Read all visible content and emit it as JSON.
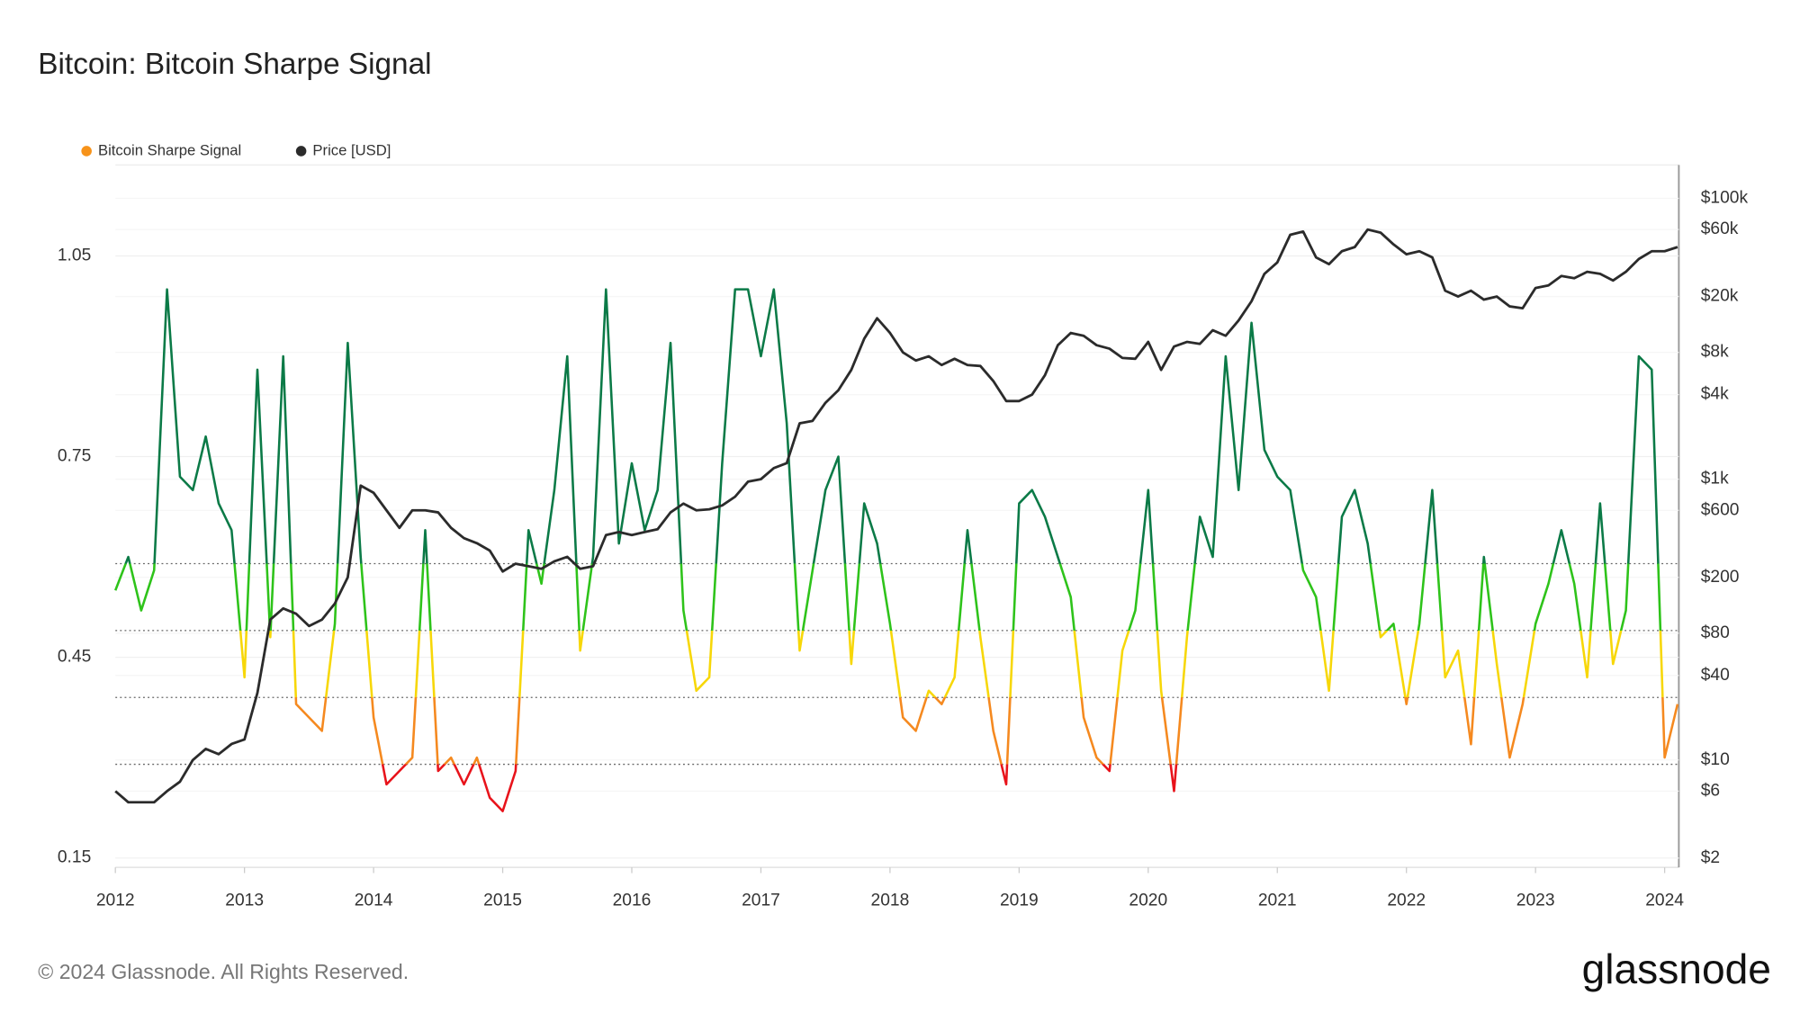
{
  "chart_data": {
    "type": "line",
    "title": "Bitcoin: Bitcoin Sharpe Signal",
    "x": [
      2012,
      2012.1,
      2012.2,
      2012.3,
      2012.4,
      2012.5,
      2012.6,
      2012.7,
      2012.8,
      2012.9,
      2013,
      2013.1,
      2013.2,
      2013.3,
      2013.4,
      2013.5,
      2013.6,
      2013.7,
      2013.8,
      2013.9,
      2014,
      2014.1,
      2014.2,
      2014.3,
      2014.4,
      2014.5,
      2014.6,
      2014.7,
      2014.8,
      2014.9,
      2015,
      2015.1,
      2015.2,
      2015.3,
      2015.4,
      2015.5,
      2015.6,
      2015.7,
      2015.8,
      2015.9,
      2016,
      2016.1,
      2016.2,
      2016.3,
      2016.4,
      2016.5,
      2016.6,
      2016.7,
      2016.8,
      2016.9,
      2017,
      2017.1,
      2017.2,
      2017.3,
      2017.4,
      2017.5,
      2017.6,
      2017.7,
      2017.8,
      2017.9,
      2018,
      2018.1,
      2018.2,
      2018.3,
      2018.4,
      2018.5,
      2018.6,
      2018.7,
      2018.8,
      2018.9,
      2019,
      2019.1,
      2019.2,
      2019.3,
      2019.4,
      2019.5,
      2019.6,
      2019.7,
      2019.8,
      2019.9,
      2020,
      2020.1,
      2020.2,
      2020.3,
      2020.4,
      2020.5,
      2020.6,
      2020.7,
      2020.8,
      2020.9,
      2021,
      2021.1,
      2021.2,
      2021.3,
      2021.4,
      2021.5,
      2021.6,
      2021.7,
      2021.8,
      2021.9,
      2022,
      2022.1,
      2022.2,
      2022.3,
      2022.4,
      2022.5,
      2022.6,
      2022.7,
      2022.8,
      2022.9,
      2023,
      2023.1,
      2023.2,
      2023.3,
      2023.4,
      2023.5,
      2023.6,
      2023.7,
      2023.8,
      2023.9,
      2024,
      2024.1
    ],
    "series": [
      {
        "name": "Bitcoin Sharpe Signal",
        "color": "#f7931a",
        "thresholds": [
          0.29,
          0.39,
          0.49,
          0.59
        ],
        "band_colors": [
          "#e8131b",
          "#f5891f",
          "#f7d708",
          "#2ec31a",
          "#0b7a47"
        ],
        "values": [
          0.55,
          0.6,
          0.52,
          0.58,
          1.0,
          0.72,
          0.7,
          0.78,
          0.68,
          0.64,
          0.42,
          0.88,
          0.48,
          0.9,
          0.38,
          0.36,
          0.34,
          0.5,
          0.92,
          0.6,
          0.36,
          0.26,
          0.28,
          0.3,
          0.64,
          0.28,
          0.3,
          0.26,
          0.3,
          0.24,
          0.22,
          0.28,
          0.64,
          0.56,
          0.7,
          0.9,
          0.46,
          0.6,
          1.0,
          0.62,
          0.74,
          0.64,
          0.7,
          0.92,
          0.52,
          0.4,
          0.42,
          0.74,
          1.0,
          1.0,
          0.9,
          1.0,
          0.8,
          0.46,
          0.58,
          0.7,
          0.75,
          0.44,
          0.68,
          0.62,
          0.5,
          0.36,
          0.34,
          0.4,
          0.38,
          0.42,
          0.64,
          0.48,
          0.34,
          0.26,
          0.68,
          0.7,
          0.66,
          0.6,
          0.54,
          0.36,
          0.3,
          0.28,
          0.46,
          0.52,
          0.7,
          0.4,
          0.25,
          0.48,
          0.66,
          0.6,
          0.9,
          0.7,
          0.95,
          0.76,
          0.72,
          0.7,
          0.58,
          0.54,
          0.4,
          0.66,
          0.7,
          0.62,
          0.48,
          0.5,
          0.38,
          0.5,
          0.7,
          0.42,
          0.46,
          0.32,
          0.6,
          0.44,
          0.3,
          0.38,
          0.5,
          0.56,
          0.64,
          0.56,
          0.42,
          0.68,
          0.44,
          0.52,
          0.9,
          0.88,
          0.3,
          0.38
        ]
      },
      {
        "name": "Price [USD]",
        "color": "#2b2b2b",
        "axis": "y2",
        "values": [
          6,
          5,
          5,
          5,
          6,
          7,
          10,
          12,
          11,
          13,
          14,
          30,
          100,
          120,
          110,
          90,
          100,
          130,
          200,
          900,
          800,
          600,
          450,
          600,
          600,
          580,
          450,
          380,
          350,
          310,
          220,
          250,
          240,
          230,
          260,
          280,
          230,
          240,
          400,
          420,
          400,
          420,
          440,
          580,
          670,
          600,
          610,
          650,
          750,
          960,
          1000,
          1200,
          1300,
          2500,
          2600,
          3500,
          4300,
          6000,
          10000,
          14000,
          11000,
          8000,
          7000,
          7500,
          6500,
          7200,
          6500,
          6400,
          5000,
          3600,
          3600,
          4000,
          5500,
          9000,
          11000,
          10500,
          9000,
          8500,
          7300,
          7200,
          9500,
          6000,
          8800,
          9500,
          9200,
          11500,
          10500,
          13500,
          18500,
          29000,
          35000,
          55000,
          58000,
          38000,
          34000,
          42000,
          45000,
          60000,
          57000,
          47000,
          40000,
          42000,
          38000,
          22000,
          20000,
          22000,
          19000,
          20000,
          17000,
          16500,
          23000,
          24000,
          28000,
          27000,
          30000,
          29000,
          26000,
          30000,
          37000,
          42000,
          42000,
          45000
        ]
      }
    ],
    "xlim": [
      2012,
      2024.11
    ],
    "xticks": [
      2012,
      2013,
      2014,
      2015,
      2016,
      2017,
      2018,
      2019,
      2020,
      2021,
      2022,
      2023,
      2024
    ],
    "ylim": [
      0.136,
      1.186
    ],
    "yticks": [
      0.15,
      0.45,
      0.75,
      1.05
    ],
    "y2lim": [
      1.72,
      173000
    ],
    "y2_log": true,
    "y2ticks": [
      {
        "value": 2,
        "label": "$2"
      },
      {
        "value": 6,
        "label": "$6"
      },
      {
        "value": 10,
        "label": "$10"
      },
      {
        "value": 40,
        "label": "$40"
      },
      {
        "value": 80,
        "label": "$80"
      },
      {
        "value": 200,
        "label": "$200"
      },
      {
        "value": 600,
        "label": "$600"
      },
      {
        "value": 1000,
        "label": "$1k"
      },
      {
        "value": 4000,
        "label": "$4k"
      },
      {
        "value": 8000,
        "label": "$8k"
      },
      {
        "value": 20000,
        "label": "$20k"
      },
      {
        "value": 60000,
        "label": "$60k"
      },
      {
        "value": 100000,
        "label": "$100k"
      }
    ],
    "grid": true,
    "legend": "top-left"
  },
  "footer": "© 2024 Glassnode. All Rights Reserved.",
  "brand": "glassnode"
}
